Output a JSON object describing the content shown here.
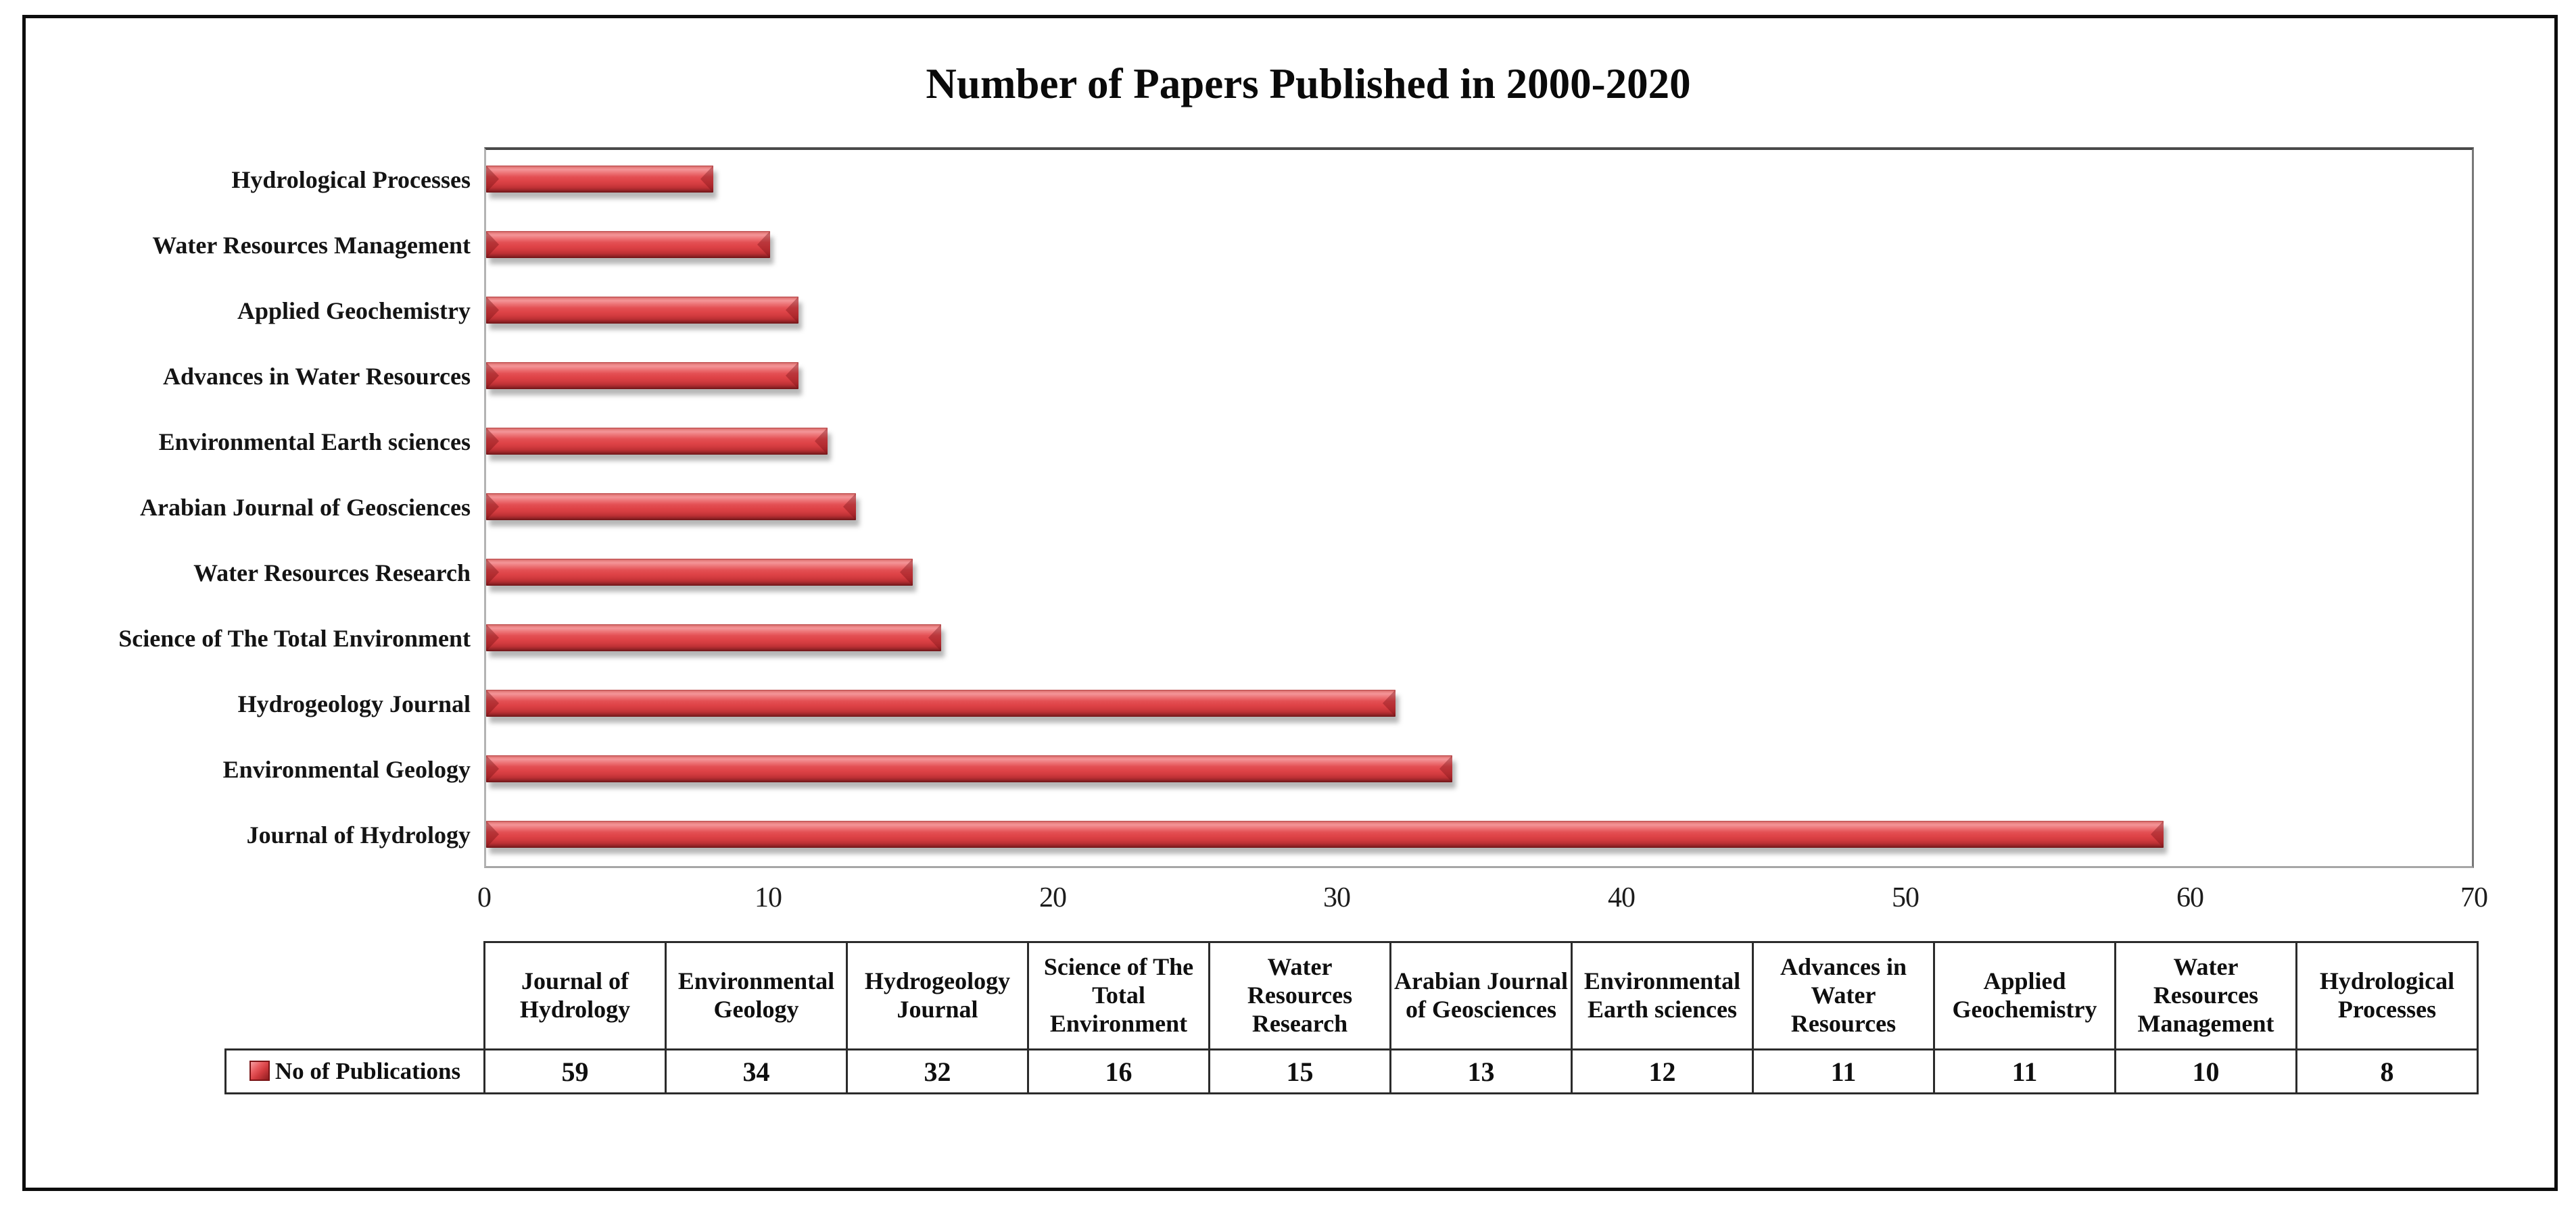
{
  "title": "Number of Papers Published in 2000-2020",
  "chart_data": {
    "type": "bar",
    "orientation": "horizontal",
    "title": "Number of Papers Published in 2000-2020",
    "categories": [
      "Journal of Hydrology",
      "Environmental Geology",
      "Hydrogeology Journal",
      "Science of The Total Environment",
      "Water Resources Research",
      "Arabian Journal of Geosciences",
      "Environmental Earth sciences",
      "Advances in Water Resources",
      "Applied Geochemistry",
      "Water Resources Management",
      "Hydrological Processes"
    ],
    "series": [
      {
        "name": "No of Publications",
        "values": [
          59,
          34,
          32,
          16,
          15,
          13,
          12,
          11,
          11,
          10,
          8
        ]
      }
    ],
    "category_order_top_to_bottom": [
      "Hydrological Processes",
      "Water Resources Management",
      "Applied Geochemistry",
      "Advances in Water Resources",
      "Environmental Earth sciences",
      "Arabian Journal of Geosciences",
      "Water Resources Research",
      "Science of The Total Environment",
      "Hydrogeology Journal",
      "Environmental Geology",
      "Journal of Hydrology"
    ],
    "xlim": [
      0,
      70
    ],
    "x_ticks": [
      0,
      10,
      20,
      30,
      40,
      50,
      60,
      70
    ],
    "grid": "off",
    "legend_position": "table-bottom-left",
    "bar_color": "#de4347",
    "bar_highlight_color": "#f49598",
    "bar_shadow_edge_color": "#7e191c",
    "plot_border_color": "#787878",
    "outer_border_color": "#0d0d0d"
  },
  "table": {
    "legend_label": "No of Publications",
    "legend_marker_color": "#d03a3e",
    "columns": [
      "Journal of Hydrology",
      "Environmental Geology",
      "Hydrogeology Journal",
      "Science of The Total Environment",
      "Water Resources Research",
      "Arabian Journal of Geosciences",
      "Environmental Earth sciences",
      "Advances in Water Resources",
      "Applied Geochemistry",
      "Water Resources Management",
      "Hydrological Processes"
    ],
    "values": [
      "59",
      "34",
      "32",
      "16",
      "15",
      "13",
      "12",
      "11",
      "11",
      "10",
      "8"
    ]
  }
}
